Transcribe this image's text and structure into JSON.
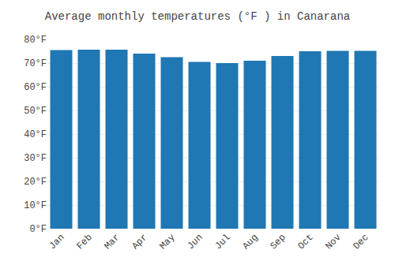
{
  "chart_data": {
    "type": "bar",
    "title": "Average monthly temperatures (°F ) in Canarana",
    "categories": [
      "Jan",
      "Feb",
      "Mar",
      "Apr",
      "May",
      "Jun",
      "Jul",
      "Aug",
      "Sep",
      "Oct",
      "Nov",
      "Dec"
    ],
    "values": [
      75.5,
      75.7,
      75.7,
      74.0,
      72.5,
      70.5,
      70.0,
      71.0,
      73.0,
      75.0,
      75.2,
      75.2
    ],
    "ylim": [
      0,
      80
    ],
    "yticks": [
      {
        "value": 0,
        "label": "0°F"
      },
      {
        "value": 10,
        "label": "10°F"
      },
      {
        "value": 20,
        "label": "20°F"
      },
      {
        "value": 30,
        "label": "30°F"
      },
      {
        "value": 40,
        "label": "40°F"
      },
      {
        "value": 50,
        "label": "50°F"
      },
      {
        "value": 60,
        "label": "60°F"
      },
      {
        "value": 70,
        "label": "70°F"
      },
      {
        "value": 80,
        "label": "80°F"
      }
    ],
    "grid": true
  }
}
